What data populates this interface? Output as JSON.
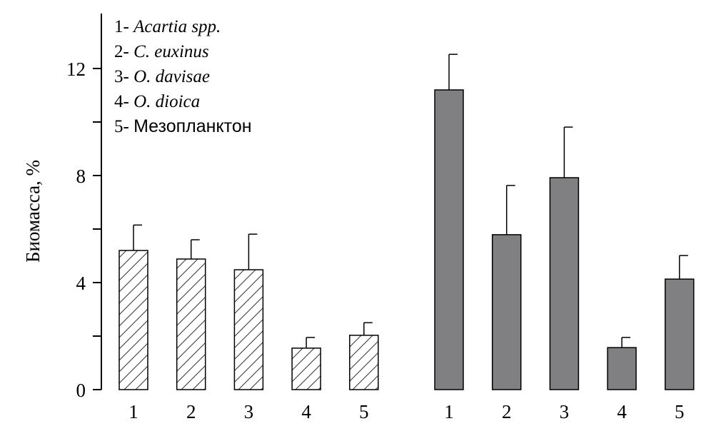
{
  "chart_data": {
    "type": "bar",
    "title": "",
    "xlabel": "",
    "ylabel": "Биомасса, %",
    "ylim": [
      0,
      14
    ],
    "yticks": [
      "0",
      "4",
      "8",
      "12"
    ],
    "ytick_values": [
      0,
      4,
      8,
      12
    ],
    "minor_ytick_values": [
      2,
      6,
      10
    ],
    "grid": false,
    "legend": {
      "placement": "top-left",
      "entries": [
        {
          "num": "1-",
          "name": "Acartia spp.",
          "italic": true
        },
        {
          "num": "2-",
          "name": "C. euxinus",
          "italic": true
        },
        {
          "num": "3-",
          "name": "O. davisae",
          "italic": true
        },
        {
          "num": "4-",
          "name": "O. dioica",
          "italic": true
        },
        {
          "num": "5-",
          "name": "Мезопланктон",
          "italic": false
        }
      ]
    },
    "categories": [
      "1",
      "2",
      "3",
      "4",
      "5"
    ],
    "series": [
      {
        "name": "group-hatched",
        "fill": "hatched",
        "values": [
          5.2,
          4.88,
          4.48,
          1.55,
          2.03
        ],
        "error_upper": [
          6.15,
          5.6,
          5.81,
          1.95,
          2.5
        ]
      },
      {
        "name": "group-gray",
        "fill": "#808083",
        "values": [
          11.2,
          5.79,
          7.92,
          1.57,
          4.13
        ],
        "error_upper": [
          12.53,
          7.63,
          9.81,
          1.95,
          5.01
        ]
      }
    ]
  }
}
